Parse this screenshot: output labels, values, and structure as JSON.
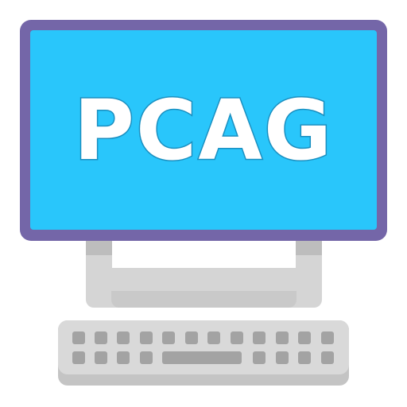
{
  "screen": {
    "label": "PCAG"
  },
  "colors": {
    "frame": "#7466a8",
    "screen": "#29c6fb",
    "text": "#ffffff",
    "text_outline": "#1a8fc0",
    "stand": "#d5d5d5",
    "keyboard": "#d9d9d9",
    "keys": "#a3a3a3"
  },
  "icons": {
    "monitor": "monitor-icon",
    "keyboard": "keyboard-icon"
  }
}
